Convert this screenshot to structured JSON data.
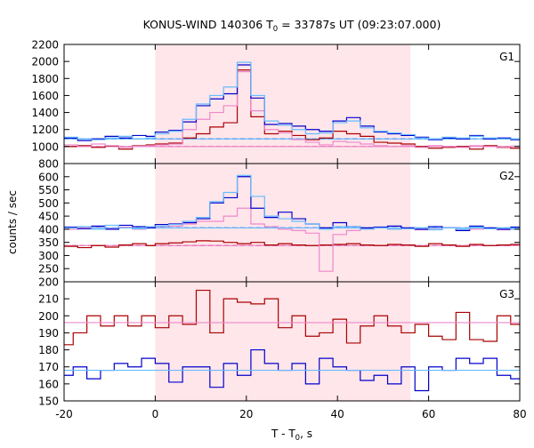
{
  "title": "KONUS-WIND 140306 T",
  "title_sub": "0",
  "title_rest": " = 33787s UT (09:23:07.000)",
  "ylabel": "counts / sec",
  "xlabel_main": "T - T",
  "xlabel_sub": "0",
  "xlabel_rest": ", s",
  "colors": {
    "shade": "#ffe6ea",
    "dark_red": "#aa0000",
    "pink": "#ee88cc",
    "dark_blue": "#0000cc",
    "light_blue": "#66bbff"
  },
  "chart_data": {
    "type": "multi-panel step plot",
    "xlim": [
      -20,
      80
    ],
    "x_ticks": [
      "-20",
      "0",
      "20",
      "40",
      "60",
      "80"
    ],
    "shaded_interval": [
      0,
      56
    ],
    "panels": [
      {
        "label": "G1",
        "ylim": [
          800,
          2200
        ],
        "y_ticks": [
          "800",
          "1000",
          "1200",
          "1400",
          "1600",
          "1800",
          "2000",
          "2200"
        ],
        "bin_edges": [
          -20,
          -17,
          -14,
          -11,
          -8,
          -5,
          -2,
          0,
          3,
          6,
          9,
          12,
          15,
          18,
          21,
          24,
          27,
          30,
          33,
          36,
          39,
          42,
          45,
          48,
          51,
          54,
          57,
          60,
          63,
          66,
          69,
          72,
          75,
          78,
          80
        ],
        "series": [
          {
            "color_key": "dark_red",
            "values": [
              1000,
              1010,
              990,
              1005,
              970,
              1010,
              1020,
              1030,
              1040,
              1100,
              1150,
              1230,
              1280,
              1900,
              1350,
              1150,
              1180,
              1130,
              1080,
              1100,
              1180,
              1150,
              1120,
              1050,
              1040,
              1030,
              1000,
              980,
              990,
              1000,
              970,
              1010,
              990,
              980
            ]
          },
          {
            "color_key": "pink",
            "values": [
              1020,
              1000,
              1030,
              1010,
              990,
              1005,
              1010,
              1020,
              1030,
              1200,
              1320,
              1400,
              1480,
              1880,
              1420,
              1200,
              1160,
              1080,
              1050,
              1020,
              1060,
              1050,
              1030,
              1010,
              1000,
              1010,
              990,
              1010,
              1000,
              990,
              1010,
              1000,
              995,
              1005
            ]
          },
          {
            "color_key": "dark_blue",
            "values": [
              1100,
              1070,
              1090,
              1120,
              1100,
              1130,
              1120,
              1170,
              1190,
              1290,
              1480,
              1560,
              1620,
              1960,
              1570,
              1260,
              1270,
              1240,
              1200,
              1180,
              1300,
              1340,
              1240,
              1170,
              1150,
              1130,
              1110,
              1080,
              1100,
              1090,
              1130,
              1090,
              1100,
              1080
            ]
          },
          {
            "color_key": "light_blue",
            "values": [
              1110,
              1090,
              1080,
              1100,
              1120,
              1090,
              1100,
              1150,
              1180,
              1320,
              1500,
              1600,
              1700,
              1990,
              1600,
              1300,
              1250,
              1200,
              1150,
              1160,
              1280,
              1300,
              1220,
              1180,
              1160,
              1140,
              1100,
              1090,
              1110,
              1100,
              1120,
              1100,
              1090,
              1090
            ]
          }
        ],
        "baselines": [
          {
            "color_key": "dark_blue",
            "style": "dashed",
            "value": 1090
          },
          {
            "color_key": "dark_red",
            "style": "dashed",
            "value": 1000
          },
          {
            "color_key": "light_blue",
            "style": "solid",
            "value": 1090
          },
          {
            "color_key": "pink",
            "style": "solid",
            "value": 1000
          }
        ]
      },
      {
        "label": "G2",
        "ylim": [
          200,
          650
        ],
        "y_ticks": [
          "200",
          "250",
          "300",
          "350",
          "400",
          "450",
          "500",
          "550",
          "600"
        ],
        "bin_edges": [
          -20,
          -17,
          -14,
          -11,
          -8,
          -5,
          -2,
          0,
          3,
          6,
          9,
          12,
          15,
          18,
          21,
          24,
          27,
          30,
          33,
          36,
          39,
          42,
          45,
          48,
          51,
          54,
          57,
          60,
          63,
          66,
          69,
          72,
          75,
          78,
          80
        ],
        "series": [
          {
            "color_key": "dark_red",
            "values": [
              335,
              330,
              338,
              332,
              340,
              345,
              338,
              345,
              348,
              352,
              356,
              355,
              350,
              345,
              350,
              340,
              345,
              340,
              338,
              340,
              342,
              345,
              340,
              338,
              342,
              340,
              335,
              345,
              340,
              335,
              342,
              338,
              340,
              342
            ]
          },
          {
            "color_key": "pink",
            "values": [
              400,
              405,
              410,
              402,
              408,
              400,
              405,
              410,
              412,
              420,
              430,
              430,
              450,
              480,
              420,
              410,
              400,
              395,
              385,
              240,
              380,
              395,
              400,
              405,
              400,
              402,
              398,
              400,
              405,
              395,
              400,
              402,
              398,
              400
            ]
          },
          {
            "color_key": "dark_blue",
            "values": [
              408,
              402,
              412,
              400,
              415,
              410,
              405,
              418,
              420,
              425,
              440,
              500,
              520,
              600,
              480,
              445,
              465,
              440,
              420,
              405,
              425,
              410,
              405,
              408,
              412,
              405,
              400,
              410,
              405,
              395,
              412,
              405,
              400,
              408
            ]
          },
          {
            "color_key": "light_blue",
            "values": [
              405,
              410,
              400,
              415,
              405,
              402,
              410,
              412,
              418,
              430,
              445,
              505,
              540,
              605,
              525,
              450,
              440,
              430,
              420,
              400,
              410,
              410,
              400,
              405,
              400,
              402,
              405,
              398,
              405,
              400,
              408,
              402,
              405,
              400
            ]
          }
        ],
        "baselines": [
          {
            "color_key": "dark_blue",
            "style": "dashed",
            "value": 405
          },
          {
            "color_key": "dark_red",
            "style": "dashed",
            "value": 338
          },
          {
            "color_key": "light_blue",
            "style": "solid",
            "value": 405
          },
          {
            "color_key": "pink",
            "style": "solid",
            "value": 338
          }
        ]
      },
      {
        "label": "G3",
        "ylim": [
          150,
          220
        ],
        "y_ticks": [
          "150",
          "160",
          "170",
          "180",
          "190",
          "200",
          "210"
        ],
        "bin_edges": [
          -20,
          -18,
          -15,
          -12,
          -9,
          -6,
          -3,
          0,
          3,
          6,
          9,
          12,
          15,
          18,
          21,
          24,
          27,
          30,
          33,
          36,
          39,
          42,
          45,
          48,
          51,
          54,
          57,
          60,
          63,
          66,
          69,
          72,
          75,
          78,
          80
        ],
        "series": [
          {
            "color_key": "dark_red",
            "values": [
              183,
              190,
              200,
              194,
              200,
              194,
              200,
              193,
              200,
              195,
              215,
              190,
              210,
              208,
              207,
              210,
              193,
              200,
              188,
              190,
              198,
              184,
              194,
              200,
              194,
              190,
              195,
              188,
              186,
              202,
              186,
              185,
              200,
              195
            ]
          },
          {
            "color_key": "pink",
            "values": [
              196,
              196,
              196,
              196,
              196,
              196,
              196,
              196,
              196,
              196,
              196,
              196,
              196,
              196,
              196,
              196,
              196,
              196,
              196,
              196,
              196,
              196,
              196,
              196,
              196,
              196,
              196,
              196,
              196,
              196,
              196,
              196,
              196,
              196
            ]
          },
          {
            "color_key": "dark_blue",
            "values": [
              165,
              170,
              163,
              168,
              172,
              170,
              175,
              172,
              161,
              170,
              170,
              158,
              172,
              165,
              180,
              172,
              168,
              172,
              160,
              175,
              170,
              168,
              162,
              165,
              160,
              170,
              156,
              170,
              168,
              175,
              172,
              175,
              165,
              163
            ]
          },
          {
            "color_key": "light_blue",
            "values": [
              168,
              168,
              168,
              168,
              168,
              168,
              168,
              168,
              168,
              168,
              168,
              168,
              168,
              168,
              168,
              168,
              168,
              168,
              168,
              168,
              168,
              168,
              168,
              168,
              168,
              168,
              168,
              168,
              168,
              168,
              168,
              168,
              168,
              168
            ]
          }
        ],
        "baselines": []
      }
    ]
  }
}
